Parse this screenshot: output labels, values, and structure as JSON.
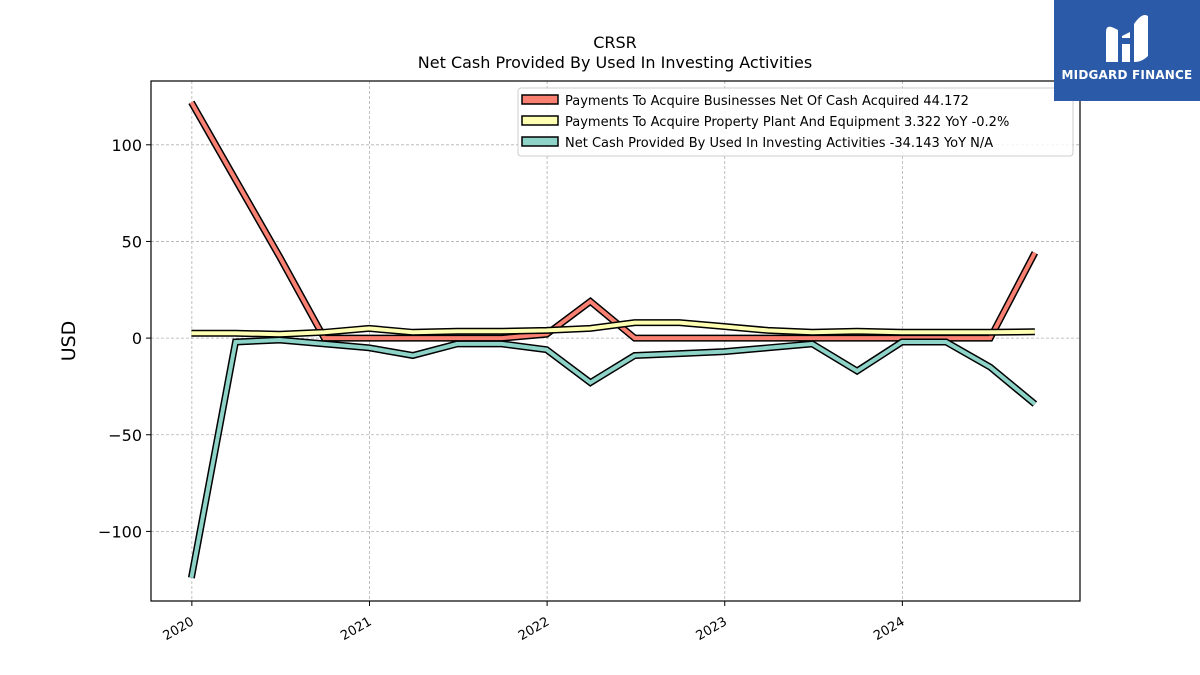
{
  "logo": {
    "text": "MIDGARD FINANCE",
    "color": "#2b5aa8"
  },
  "chart_data": {
    "type": "line",
    "title": "CRSR",
    "subtitle": "Net Cash Provided By Used In Investing Activities",
    "xlabel": "",
    "ylabel": "USD",
    "x_ticks": [
      "2020",
      "2021",
      "2022",
      "2023",
      "2024"
    ],
    "y_ticks": [
      100,
      50,
      0,
      -50,
      -100
    ],
    "y_tick_labels": [
      "100",
      "50",
      "0",
      "−50",
      "−100"
    ],
    "xlim": [
      2019.77,
      2025.0
    ],
    "ylim": [
      -136,
      133
    ],
    "grid": true,
    "legend_position": "top-right",
    "x": [
      "2019-12-31",
      "2020-03-31",
      "2020-06-30",
      "2020-09-30",
      "2020-12-31",
      "2021-03-31",
      "2021-06-30",
      "2021-09-30",
      "2021-12-31",
      "2022-03-31",
      "2022-06-30",
      "2022-09-30",
      "2022-12-31",
      "2023-03-31",
      "2023-06-30",
      "2023-09-30",
      "2023-12-31",
      "2024-03-31",
      "2024-06-30",
      "2024-09-30"
    ],
    "series": [
      {
        "name": "Payments To Acquire Businesses Net Of Cash Acquired",
        "legend_label": "Payments To Acquire Businesses Net Of Cash Acquired  44.172",
        "color": "#fa8072",
        "values": [
          122,
          82,
          42,
          0,
          0,
          0,
          0,
          0,
          2,
          19,
          0,
          0,
          0,
          0,
          0,
          0,
          0,
          0,
          0,
          44.172
        ]
      },
      {
        "name": "Payments To Acquire Property Plant And Equipment",
        "legend_label": "Payments To Acquire Property Plant And Equipment  3.322 YoY -0.2%",
        "color": "#ffffb3",
        "values": [
          2.5,
          2.5,
          2,
          3,
          5,
          3,
          3.5,
          3.5,
          4,
          5,
          8,
          8,
          6,
          4,
          3,
          3.5,
          3,
          3,
          3,
          3.322
        ]
      },
      {
        "name": "Net Cash Provided By Used In Investing Activities",
        "legend_label": "Net Cash Provided By Used In Investing Activities  -34.143 YoY N/A",
        "color": "#8dd3c7",
        "values": [
          -124,
          -2,
          -1,
          -3,
          -5,
          -9,
          -3,
          -3,
          -6,
          -23,
          -9,
          -8,
          -7,
          -5,
          -3,
          -17,
          -2,
          -2,
          -15,
          -34.143
        ]
      }
    ]
  }
}
